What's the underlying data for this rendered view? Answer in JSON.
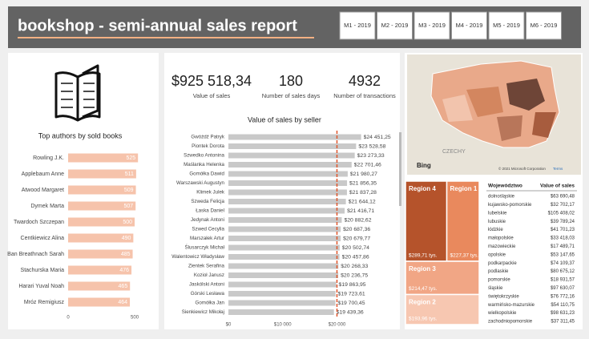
{
  "header": {
    "title": "bookshop - semi-annual sales report",
    "buttons": [
      "M1 - 2019",
      "M2 - 2019",
      "M3 - 2019",
      "M4 - 2019",
      "M5 - 2019",
      "M6 - 2019"
    ]
  },
  "kpis": [
    {
      "value": "$925 518,34",
      "label": "Value of sales"
    },
    {
      "value": "180",
      "label": "Number of sales days"
    },
    {
      "value": "4932",
      "label": "Number of transactions"
    }
  ],
  "chart_data": [
    {
      "type": "bar",
      "orientation": "horizontal",
      "title": "Top authors by sold books",
      "categories": [
        "Rowling J.K.",
        "Applebaum Anne",
        "Atwood Margaret",
        "Dymek Marta",
        "Twardoch Szczepan",
        "Centkiewicz Alina",
        "Ban Breathnach Sarah",
        "Stachurska Maria",
        "Harari Yuval Noah",
        "Mróz Remigiusz"
      ],
      "values": [
        525,
        511,
        509,
        507,
        500,
        490,
        485,
        476,
        465,
        464
      ],
      "color": "#f6c3ab",
      "xlim": [
        0,
        560
      ],
      "xticks": [
        0,
        500
      ]
    },
    {
      "type": "bar",
      "orientation": "horizontal",
      "title": "Value of sales by seller",
      "categories": [
        "Gwóźdź Patryk",
        "Piontek Dorota",
        "Szwedko Antonina",
        "Maślanka Helenka",
        "Gomółka Dawid",
        "Warszawski Augustyn",
        "Klimek Julek",
        "Szweda Felicja",
        "Łaska Daniel",
        "Jedynak Antoni",
        "Szwed Cecylia",
        "Marszałek Artur",
        "Ślusarczyk Michał",
        "Walentowicz Władysław",
        "Zientek Serafina",
        "Kozioł Janusz",
        "Jaskólski Antoni",
        "Górski Lesława",
        "Gomółka Jan",
        "Sienkiewicz Mikołaj"
      ],
      "values": [
        24451.25,
        23528.58,
        23273.33,
        22701.46,
        21980.27,
        21856.35,
        21837.28,
        21644.12,
        21416.71,
        20882.62,
        20687.36,
        20679.77,
        20502.74,
        20457.86,
        20268.33,
        20236.75,
        19863.95,
        19723.61,
        19700.45,
        19439.36
      ],
      "value_labels": [
        "$24 451,25",
        "$23 528,58",
        "$23 273,33",
        "$22 701,46",
        "$21 980,27",
        "$21 856,35",
        "$21 837,28",
        "$21 644,12",
        "$21 416,71",
        "$20 882,62",
        "$20 687,36",
        "$20 679,77",
        "$20 502,74",
        "$20 457,86",
        "$20 268,33",
        "$20 236,75",
        "$19 863,95",
        "$19 723,61",
        "$19 700,45",
        "$19 439,36"
      ],
      "color": "#c9c9c9",
      "xlim": [
        0,
        31000
      ],
      "xticks": [
        {
          "value": 0,
          "label": "$0"
        },
        {
          "value": 10000,
          "label": "$10 000"
        },
        {
          "value": 20000,
          "label": "$20 000"
        }
      ],
      "reference_line": 20000,
      "reference_color": "#e0552b"
    },
    {
      "type": "treemap",
      "categories": [
        "Region 4",
        "Region 1",
        "Region 3",
        "Region 2"
      ],
      "values": [
        289.71,
        227.37,
        214.47,
        193.96
      ],
      "value_labels": [
        "$289,71 tys.",
        "$227,37 tys.",
        "$214,47 tys.",
        "$193,96 tys."
      ],
      "colors": [
        "#b5532b",
        "#e9895d",
        "#f1a685",
        "#f7c7b1"
      ]
    }
  ],
  "map": {
    "country_label": "CZECHY",
    "provider": "Bing",
    "copyright": "© 2021 Microsoft Corporation",
    "terms": "Terms"
  },
  "table": {
    "columns": [
      "Województwo",
      "Value of sales"
    ],
    "rows": [
      [
        "dolnośląskie",
        "$63 690,48"
      ],
      [
        "kujawsko-pomorskie",
        "$32 702,17"
      ],
      [
        "lubelskie",
        "$105 408,02"
      ],
      [
        "lubuskie",
        "$39 789,24"
      ],
      [
        "łódzkie",
        "$41 701,23"
      ],
      [
        "małopolskie",
        "$33 418,03"
      ],
      [
        "mazowieckie",
        "$17 489,71"
      ],
      [
        "opolskie",
        "$53 147,65"
      ],
      [
        "podkarpackie",
        "$74 109,37"
      ],
      [
        "podlaskie",
        "$80 675,12"
      ],
      [
        "pomorskie",
        "$18 931,57"
      ],
      [
        "śląskie",
        "$97 630,07"
      ],
      [
        "świętokrzyskie",
        "$76 772,16"
      ],
      [
        "warmińsko-mazurskie",
        "$54 110,75"
      ],
      [
        "wielkopolskie",
        "$98 631,23"
      ],
      [
        "zachodniopomorskie",
        "$37 311,45"
      ]
    ]
  }
}
